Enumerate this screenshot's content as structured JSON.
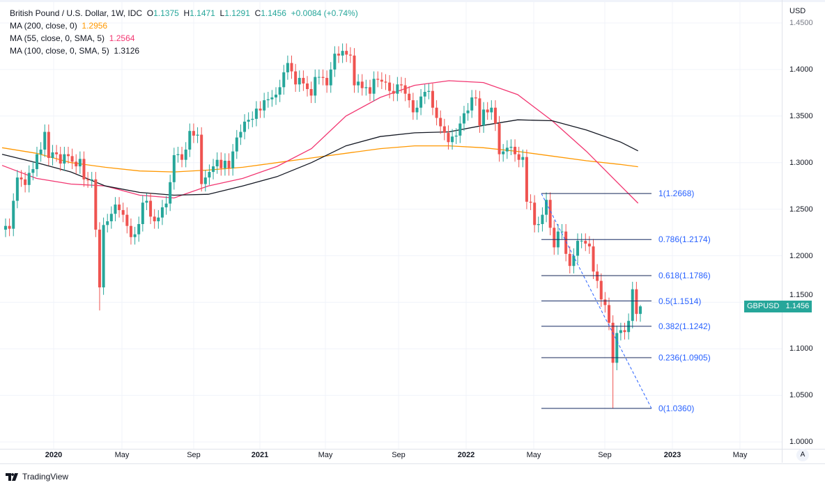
{
  "header": {
    "symbol": "British Pound / U.S. Dollar, 1W, IDC",
    "o_label": "O",
    "o": "1.1375",
    "h_label": "H",
    "h": "1.1471",
    "l_label": "L",
    "l": "1.1291",
    "c_label": "C",
    "c": "1.1456",
    "change": "+0.0084 (+0.74%)"
  },
  "indicators": [
    {
      "label": "MA (200, close, 0)",
      "value": "1.2956",
      "color": "#ff9800"
    },
    {
      "label": "MA (55, close, 0, SMA, 5)",
      "value": "1.2564",
      "color": "#f23671"
    },
    {
      "label": "MA (100, close, 0, SMA, 5)",
      "value": "1.3126",
      "color": "#131722"
    }
  ],
  "price_axis": {
    "unit": "USD",
    "labels": [
      "1.4500",
      "1.4000",
      "1.3500",
      "1.3000",
      "1.2500",
      "1.2000",
      "1.1500",
      "1.1000",
      "1.0500",
      "1.0000"
    ]
  },
  "badge": {
    "symbol": "GBPUSD",
    "price": "1.1456"
  },
  "time_axis": {
    "labels": [
      "2020",
      "May",
      "Sep",
      "2021",
      "May",
      "Sep",
      "2022",
      "May",
      "Sep",
      "2023",
      "May"
    ],
    "auto_button": "A"
  },
  "footer": {
    "brand": "TradingView"
  },
  "chart_data": {
    "type": "candlestick",
    "interval": "1W",
    "ylim": [
      1.0,
      1.45
    ],
    "up_color": "#26a69a",
    "down_color": "#ef5350",
    "closes": [
      1.232,
      1.229,
      1.259,
      1.284,
      1.282,
      1.276,
      1.289,
      1.293,
      1.309,
      1.314,
      1.333,
      1.305,
      1.311,
      1.309,
      1.299,
      1.309,
      1.307,
      1.301,
      1.296,
      1.304,
      1.282,
      1.281,
      1.282,
      1.228,
      1.166,
      1.233,
      1.237,
      1.245,
      1.255,
      1.249,
      1.244,
      1.232,
      1.22,
      1.223,
      1.234,
      1.257,
      1.259,
      1.242,
      1.237,
      1.241,
      1.252,
      1.256,
      1.279,
      1.308,
      1.309,
      1.303,
      1.314,
      1.334,
      1.329,
      1.33,
      1.277,
      1.284,
      1.29,
      1.296,
      1.303,
      1.294,
      1.302,
      1.294,
      1.312,
      1.327,
      1.333,
      1.344,
      1.346,
      1.347,
      1.358,
      1.356,
      1.367,
      1.368,
      1.37,
      1.373,
      1.381,
      1.397,
      1.407,
      1.398,
      1.384,
      1.391,
      1.385,
      1.379,
      1.372,
      1.392,
      1.392,
      1.391,
      1.383,
      1.4,
      1.417,
      1.415,
      1.42,
      1.416,
      1.415,
      1.383,
      1.387,
      1.38,
      1.381,
      1.374,
      1.39,
      1.389,
      1.387,
      1.386,
      1.377,
      1.374,
      1.384,
      1.383,
      1.374,
      1.367,
      1.354,
      1.359,
      1.371,
      1.376,
      1.377,
      1.359,
      1.348,
      1.339,
      1.332,
      1.322,
      1.328,
      1.329,
      1.342,
      1.353,
      1.356,
      1.37,
      1.369,
      1.34,
      1.357,
      1.354,
      1.359,
      1.342,
      1.309,
      1.312,
      1.316,
      1.317,
      1.309,
      1.303,
      1.306,
      1.258,
      1.257,
      1.233,
      1.234,
      1.244,
      1.26,
      1.23,
      1.209,
      1.226,
      1.226,
      1.202,
      1.189,
      1.2,
      1.216,
      1.216,
      1.213,
      1.21,
      1.183,
      1.173,
      1.153,
      1.147,
      1.128,
      1.085,
      1.117,
      1.12,
      1.118,
      1.13,
      1.164,
      1.1375,
      1.1456
    ],
    "notable_lows": [
      {
        "close": 1.166,
        "low": 1.1412
      },
      {
        "close": 1.085,
        "low": 1.036
      }
    ],
    "last": {
      "open": 1.1375,
      "high": 1.1471,
      "low": 1.1291,
      "close": 1.1456
    },
    "moving_averages": [
      {
        "name": "MA (200, close, 0)",
        "color": "#ff9800",
        "points": [
          [
            "2019-10",
            1.316
          ],
          [
            "2019-12",
            1.31
          ],
          [
            "2020-02",
            1.3
          ],
          [
            "2020-04",
            1.295
          ],
          [
            "2020-06",
            1.291
          ],
          [
            "2020-08",
            1.29
          ],
          [
            "2020-10",
            1.292
          ],
          [
            "2020-12",
            1.295
          ],
          [
            "2021-02",
            1.3
          ],
          [
            "2021-04",
            1.305
          ],
          [
            "2021-06",
            1.31
          ],
          [
            "2021-08",
            1.315
          ],
          [
            "2021-10",
            1.318
          ],
          [
            "2021-12",
            1.318
          ],
          [
            "2022-02",
            1.316
          ],
          [
            "2022-04",
            1.312
          ],
          [
            "2022-06",
            1.307
          ],
          [
            "2022-08",
            1.302
          ],
          [
            "2022-10",
            1.298
          ],
          [
            "2022-11",
            1.2956
          ]
        ]
      },
      {
        "name": "MA (55, close, 0, SMA, 5)",
        "color": "#f23671",
        "points": [
          [
            "2019-10",
            1.297
          ],
          [
            "2019-12",
            1.283
          ],
          [
            "2020-02",
            1.277
          ],
          [
            "2020-04",
            1.275
          ],
          [
            "2020-06",
            1.265
          ],
          [
            "2020-08",
            1.262
          ],
          [
            "2020-10",
            1.275
          ],
          [
            "2020-12",
            1.283
          ],
          [
            "2021-02",
            1.296
          ],
          [
            "2021-04",
            1.315
          ],
          [
            "2021-06",
            1.35
          ],
          [
            "2021-08",
            1.37
          ],
          [
            "2021-10",
            1.383
          ],
          [
            "2021-12",
            1.388
          ],
          [
            "2022-02",
            1.386
          ],
          [
            "2022-04",
            1.373
          ],
          [
            "2022-06",
            1.345
          ],
          [
            "2022-08",
            1.312
          ],
          [
            "2022-10",
            1.275
          ],
          [
            "2022-11",
            1.2564
          ]
        ]
      },
      {
        "name": "MA (100, close, 0, SMA, 5)",
        "color": "#131722",
        "points": [
          [
            "2019-10",
            1.309
          ],
          [
            "2019-12",
            1.3
          ],
          [
            "2020-02",
            1.29
          ],
          [
            "2020-04",
            1.275
          ],
          [
            "2020-06",
            1.268
          ],
          [
            "2020-08",
            1.265
          ],
          [
            "2020-10",
            1.266
          ],
          [
            "2020-12",
            1.275
          ],
          [
            "2021-02",
            1.285
          ],
          [
            "2021-04",
            1.3
          ],
          [
            "2021-06",
            1.318
          ],
          [
            "2021-08",
            1.328
          ],
          [
            "2021-10",
            1.332
          ],
          [
            "2021-12",
            1.333
          ],
          [
            "2022-02",
            1.34
          ],
          [
            "2022-04",
            1.346
          ],
          [
            "2022-06",
            1.345
          ],
          [
            "2022-08",
            1.335
          ],
          [
            "2022-10",
            1.322
          ],
          [
            "2022-11",
            1.3126
          ]
        ]
      }
    ],
    "fibonacci": {
      "color": "#2962ff",
      "high": 1.2668,
      "low": 1.036,
      "levels": [
        {
          "ratio": 1,
          "price": 1.2668,
          "label": "1(1.2668)"
        },
        {
          "ratio": 0.786,
          "price": 1.2174,
          "label": "0.786(1.2174)"
        },
        {
          "ratio": 0.618,
          "price": 1.1786,
          "label": "0.618(1.1786)"
        },
        {
          "ratio": 0.5,
          "price": 1.1514,
          "label": "0.5(1.1514)"
        },
        {
          "ratio": 0.382,
          "price": 1.1242,
          "label": "0.382(1.1242)"
        },
        {
          "ratio": 0.236,
          "price": 1.0905,
          "label": "0.236(1.0905)"
        },
        {
          "ratio": 0,
          "price": 1.036,
          "label": "0(1.0360)"
        }
      ]
    },
    "grid": true
  }
}
